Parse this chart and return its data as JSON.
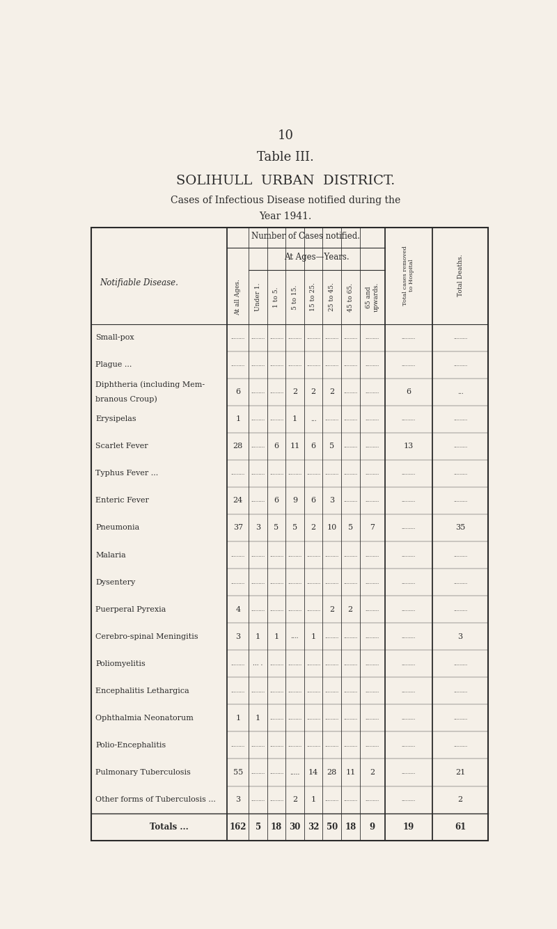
{
  "page_number": "10",
  "table_title": "Table III.",
  "subtitle1": "SOLIHULL  URBAN  DISTRICT.",
  "subtitle2": "Cases of Infectious Disease notified during the",
  "subtitle3": "Year 1941.",
  "bg_color": "#f5f0e8",
  "rows": [
    {
      "disease": "Small-pox",
      "suffix": " ...          ...",
      "all": "",
      "u1": "",
      "1to5": "",
      "5to15": "",
      "15to25": "",
      "25to45": "",
      "45to65": "",
      "65up": "",
      "removed": "",
      "deaths": ""
    },
    {
      "disease": "Plague ...",
      "suffix": "  ...          ...",
      "all": "",
      "u1": "",
      "1to5": "",
      "5to15": "",
      "15to25": "",
      "25to45": "",
      "45to65": "",
      "65up": "",
      "removed": "",
      "deaths": ""
    },
    {
      "disease": "Diphtheria (including Mem-",
      "line2": "    branous Croup)",
      "suffix": "",
      "all": "6",
      "u1": "",
      "1to5": "",
      "5to15": "2",
      "15to25": "2",
      "25to45": "2",
      "45to65": "",
      "65up": "",
      "removed": "6",
      "deaths": "..."
    },
    {
      "disease": "Erysipelas",
      "suffix": " ...          ...",
      "all": "1",
      "u1": "",
      "1to5": "",
      "5to15": "1",
      "15to25": "...",
      "25to45": "",
      "45to65": "",
      "65up": "",
      "removed": "",
      "deaths": ""
    },
    {
      "disease": "Scarlet Fever",
      "suffix": " ...          ...",
      "all": "28",
      "u1": "",
      "1to5": "6",
      "5to15": "11",
      "15to25": "6",
      "25to45": "5",
      "45to65": "",
      "65up": "",
      "removed": "13",
      "deaths": ""
    },
    {
      "disease": "Typhus Fever ...",
      "suffix": " ...          ...",
      "all": "",
      "u1": "",
      "1to5": "",
      "5to15": "",
      "15to25": "",
      "25to45": "",
      "45to65": "",
      "65up": "",
      "removed": "",
      "deaths": ""
    },
    {
      "disease": "Enteric Fever",
      "suffix": " ...          ...",
      "all": "24",
      "u1": "",
      "1to5": "6",
      "5to15": "9",
      "15to25": "6",
      "25to45": "3",
      "45to65": "",
      "65up": "",
      "removed": "",
      "deaths": ""
    },
    {
      "disease": "Pneumonia",
      "suffix": " ...          ...",
      "all": "37",
      "u1": "3",
      "1to5": "5",
      "5to15": "5",
      "15to25": "2",
      "25to45": "10",
      "45to65": "5",
      "65up": "7",
      "removed": "",
      "deaths": "35"
    },
    {
      "disease": "Malaria",
      "suffix": " ...          ...",
      "all": "",
      "u1": "",
      "1to5": "",
      "5to15": "",
      "15to25": "",
      "25to45": "",
      "45to65": "",
      "65up": "",
      "removed": "",
      "deaths": ""
    },
    {
      "disease": "Dysentery",
      "suffix": " ...          ...",
      "all": "",
      "u1": "",
      "1to5": "",
      "5to15": "",
      "15to25": "",
      "25to45": "",
      "45to65": "",
      "65up": "",
      "removed": "",
      "deaths": ""
    },
    {
      "disease": "Puerperal Pyrexia",
      "suffix": " ...",
      "all": "4",
      "u1": "",
      "1to5": "",
      "5to15": "",
      "15to25": "",
      "25to45": "2",
      "45to65": "2",
      "65up": "",
      "removed": "",
      "deaths": ""
    },
    {
      "disease": "Cerebro-spinal Meningitis",
      "suffix": " ...",
      "all": "3",
      "u1": "1",
      "1to5": "1",
      "5to15": "....",
      "15to25": "1",
      "25to45": "",
      "45to65": "",
      "65up": "",
      "removed": "",
      "deaths": "3"
    },
    {
      "disease": "Poliomyelitis",
      "suffix": " ...          ...",
      "all": "",
      "u1": "... .",
      "1to5": "",
      "5to15": "",
      "15to25": "",
      "25to45": "",
      "45to65": "",
      "65up": "",
      "removed": "",
      "deaths": ""
    },
    {
      "disease": "Encephalitis Lethargica",
      "suffix": " ...",
      "all": "",
      "u1": "",
      "1to5": "",
      "5to15": "",
      "15to25": "",
      "25to45": "",
      "45to65": "",
      "65up": "",
      "removed": "",
      "deaths": ""
    },
    {
      "disease": "Ophthalmia Neonatorum",
      "suffix": " ...",
      "all": "1",
      "u1": "1",
      "1to5": "",
      "5to15": "",
      "15to25": "",
      "25to45": "",
      "45to65": "",
      "65up": "",
      "removed": "",
      "deaths": ""
    },
    {
      "disease": "Polio-Encephalitis",
      "suffix": " ...",
      "all": "",
      "u1": "",
      "1to5": "",
      "5to15": "",
      "15to25": "",
      "25to45": "",
      "45to65": "",
      "65up": "",
      "removed": "",
      "deaths": ""
    },
    {
      "disease": "Pulmonary Tuberculosis",
      "suffix": " ...",
      "all": "55",
      "u1": "",
      "1to5": "",
      "5to15": ".....",
      "15to25": "14",
      "25to45": "28",
      "45to65": "11",
      "65up": "2",
      "removed": "",
      "deaths": "21"
    },
    {
      "disease": "Other forms of Tuberculosis ...",
      "suffix": "",
      "all": "3",
      "u1": "",
      "1to5": "",
      "5to15": "2",
      "15to25": "1",
      "25to45": "",
      "45to65": "",
      "65up": "",
      "removed": "",
      "deaths": "2"
    },
    {
      "disease": "Totals ...",
      "suffix": "          ...",
      "all": "162",
      "u1": "5",
      "1to5": "18",
      "5to15": "30",
      "15to25": "32",
      "25to45": "50",
      "45to65": "18",
      "65up": "9",
      "removed": "19",
      "deaths": "61",
      "is_total": true
    }
  ]
}
